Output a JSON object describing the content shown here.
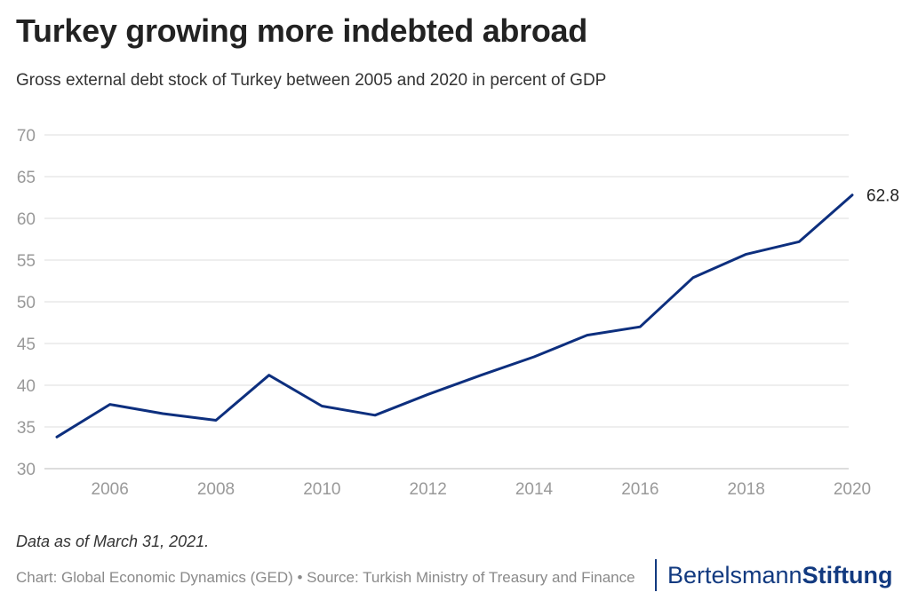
{
  "title": "Turkey growing more indebted abroad",
  "subtitle": "Gross external debt stock of Turkey between 2005 and 2020 in percent of GDP",
  "note": "Data as of March 31, 2021.",
  "footer": "Chart: Global Economic Dynamics (GED) • Source: Turkish Ministry of Treasury and Finance",
  "brand": {
    "part1": "Bertelsmann",
    "part2": "Stiftung",
    "color": "#123a80"
  },
  "colors": {
    "line": "#0d2f7e",
    "grid": "#dddddd",
    "tick": "#999999"
  },
  "chart_data": {
    "type": "line",
    "title": "Turkey growing more indebted abroad",
    "xlabel": "",
    "ylabel": "",
    "ylim": [
      30,
      70
    ],
    "xlim": [
      2005,
      2020
    ],
    "yticks": [
      30,
      35,
      40,
      45,
      50,
      55,
      60,
      65,
      70
    ],
    "xticks": [
      2006,
      2008,
      2010,
      2012,
      2014,
      2016,
      2018,
      2020
    ],
    "series": [
      {
        "name": "Gross external debt stock (% of GDP)",
        "x": [
          2005,
          2006,
          2007,
          2008,
          2009,
          2010,
          2011,
          2012,
          2013,
          2014,
          2015,
          2016,
          2017,
          2018,
          2019,
          2020
        ],
        "values": [
          33.8,
          37.7,
          36.6,
          35.8,
          41.2,
          37.5,
          36.4,
          38.9,
          41.2,
          43.4,
          46.0,
          47.0,
          52.9,
          55.7,
          57.2,
          62.8
        ]
      }
    ],
    "end_label": "62.8"
  }
}
